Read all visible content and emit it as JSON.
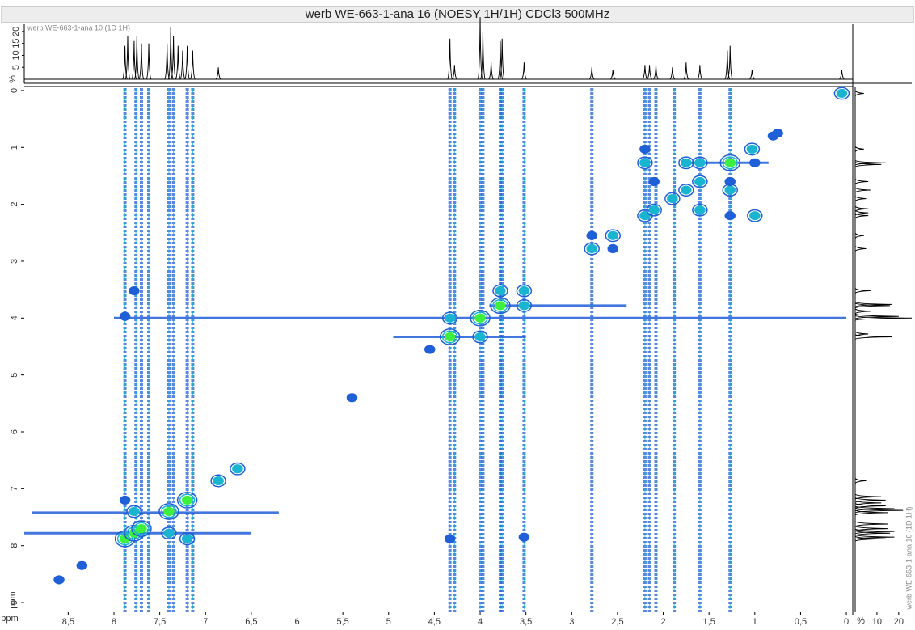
{
  "chart_data": {
    "type": "nmr2d",
    "title": "werb WE-663-1-ana 16 (NOESY 1H/1H) CDCl3 500MHz",
    "trace_label": "werb WE-663-1-ana 10 (1D 1H)",
    "side_label": "werb WE-663-1-ana 10 (1D 1H)",
    "x_unit": "ppm",
    "y_unit": "ppm",
    "trace_unit": "%",
    "side_unit": "%",
    "xlim": [
      8.98,
      -0.07
    ],
    "ylim": [
      -0.07,
      9.17
    ],
    "xticks": [
      {
        "value": 8.5,
        "label": "8,5"
      },
      8,
      {
        "value": 7.5,
        "label": "7,5"
      },
      7,
      {
        "value": 6.5,
        "label": "6,5"
      },
      6,
      {
        "value": 5.5,
        "label": "5,5"
      },
      5,
      {
        "value": 4.5,
        "label": "4,5"
      },
      4,
      {
        "value": 3.5,
        "label": "3,5"
      },
      3,
      {
        "value": 2.5,
        "label": "2,5"
      },
      2,
      {
        "value": 1.5,
        "label": "1,5"
      },
      1,
      {
        "value": 0.5,
        "label": "0,5"
      },
      0
    ],
    "yticks": [
      0,
      1,
      2,
      3,
      4,
      5,
      6,
      7,
      8,
      9
    ],
    "trace_lim": [
      0,
      22
    ],
    "trace_ticks": [
      5,
      10,
      15,
      20
    ],
    "side_lim": [
      0,
      26
    ],
    "side_ticks": [
      10,
      20
    ],
    "level_colors": [
      "#1f5fd8",
      "#19b5d0",
      "#3ef03e"
    ],
    "trace_peaks": [
      {
        "x": 7.88,
        "h": 14
      },
      {
        "x": 7.85,
        "h": 18
      },
      {
        "x": 7.78,
        "h": 16
      },
      {
        "x": 7.75,
        "h": 18
      },
      {
        "x": 7.7,
        "h": 15
      },
      {
        "x": 7.62,
        "h": 15
      },
      {
        "x": 7.42,
        "h": 15
      },
      {
        "x": 7.38,
        "h": 22
      },
      {
        "x": 7.35,
        "h": 18
      },
      {
        "x": 7.3,
        "h": 14
      },
      {
        "x": 7.25,
        "h": 12
      },
      {
        "x": 7.2,
        "h": 14
      },
      {
        "x": 7.14,
        "h": 12
      },
      {
        "x": 6.86,
        "h": 5
      },
      {
        "x": 4.33,
        "h": 17
      },
      {
        "x": 4.28,
        "h": 6
      },
      {
        "x": 4.0,
        "h": 26
      },
      {
        "x": 3.97,
        "h": 20
      },
      {
        "x": 3.88,
        "h": 7
      },
      {
        "x": 3.78,
        "h": 16
      },
      {
        "x": 3.76,
        "h": 17
      },
      {
        "x": 3.52,
        "h": 7
      },
      {
        "x": 2.78,
        "h": 5
      },
      {
        "x": 2.55,
        "h": 4
      },
      {
        "x": 2.2,
        "h": 6
      },
      {
        "x": 2.15,
        "h": 6
      },
      {
        "x": 2.08,
        "h": 6
      },
      {
        "x": 1.9,
        "h": 5
      },
      {
        "x": 1.75,
        "h": 7
      },
      {
        "x": 1.6,
        "h": 6
      },
      {
        "x": 1.3,
        "h": 12
      },
      {
        "x": 1.27,
        "h": 14
      },
      {
        "x": 1.03,
        "h": 4
      },
      {
        "x": 0.05,
        "h": 4
      }
    ],
    "vertical_streaks": [
      7.88,
      7.76,
      7.7,
      7.62,
      7.4,
      7.35,
      7.2,
      7.14,
      4.33,
      4.28,
      4.0,
      3.97,
      3.78,
      3.76,
      3.52,
      2.78,
      2.2,
      2.15,
      2.08,
      1.88,
      1.6,
      1.27
    ],
    "horizontal_streaks": [
      {
        "y": 4.0,
        "from": 8.0,
        "to": 0.0
      },
      {
        "y": 7.42,
        "from": 8.9,
        "to": 6.2
      },
      {
        "y": 7.78,
        "from": 8.98,
        "to": 6.5
      },
      {
        "y": 4.33,
        "from": 4.95,
        "to": 3.5
      },
      {
        "y": 1.27,
        "from": 1.7,
        "to": 0.85
      },
      {
        "y": 3.78,
        "from": 3.9,
        "to": 2.4
      }
    ],
    "peaks": [
      {
        "x": 7.88,
        "y": 7.88,
        "level": 3
      },
      {
        "x": 7.78,
        "y": 7.78,
        "level": 3
      },
      {
        "x": 7.7,
        "y": 7.7,
        "level": 3
      },
      {
        "x": 7.4,
        "y": 7.4,
        "level": 3
      },
      {
        "x": 7.2,
        "y": 7.2,
        "level": 3
      },
      {
        "x": 6.86,
        "y": 6.86,
        "level": 2
      },
      {
        "x": 6.65,
        "y": 6.65,
        "level": 2
      },
      {
        "x": 8.6,
        "y": 8.6,
        "level": 1
      },
      {
        "x": 8.35,
        "y": 8.35,
        "level": 1
      },
      {
        "x": 5.4,
        "y": 5.4,
        "level": 1
      },
      {
        "x": 4.55,
        "y": 4.55,
        "level": 1
      },
      {
        "x": 4.33,
        "y": 4.33,
        "level": 3
      },
      {
        "x": 4.0,
        "y": 4.0,
        "level": 3
      },
      {
        "x": 3.78,
        "y": 3.78,
        "level": 3
      },
      {
        "x": 3.52,
        "y": 3.52,
        "level": 2
      },
      {
        "x": 2.78,
        "y": 2.78,
        "level": 2
      },
      {
        "x": 2.55,
        "y": 2.55,
        "level": 2
      },
      {
        "x": 2.2,
        "y": 2.2,
        "level": 2
      },
      {
        "x": 2.1,
        "y": 2.1,
        "level": 2
      },
      {
        "x": 1.9,
        "y": 1.9,
        "level": 2
      },
      {
        "x": 1.75,
        "y": 1.75,
        "level": 2
      },
      {
        "x": 1.6,
        "y": 1.6,
        "level": 2
      },
      {
        "x": 1.27,
        "y": 1.27,
        "level": 3
      },
      {
        "x": 1.03,
        "y": 1.03,
        "level": 2
      },
      {
        "x": 0.8,
        "y": 0.8,
        "level": 1
      },
      {
        "x": 0.05,
        "y": 0.05,
        "level": 2
      },
      {
        "x": 7.88,
        "y": 7.2,
        "level": 1
      },
      {
        "x": 7.78,
        "y": 7.4,
        "level": 2
      },
      {
        "x": 7.4,
        "y": 7.78,
        "level": 2
      },
      {
        "x": 7.2,
        "y": 7.88,
        "level": 2
      },
      {
        "x": 7.78,
        "y": 3.52,
        "level": 1
      },
      {
        "x": 7.88,
        "y": 3.97,
        "level": 1
      },
      {
        "x": 3.52,
        "y": 7.85,
        "level": 1
      },
      {
        "x": 4.33,
        "y": 7.88,
        "level": 1
      },
      {
        "x": 4.0,
        "y": 4.33,
        "level": 2
      },
      {
        "x": 4.33,
        "y": 4.0,
        "level": 2
      },
      {
        "x": 3.78,
        "y": 3.52,
        "level": 2
      },
      {
        "x": 3.52,
        "y": 3.78,
        "level": 2
      },
      {
        "x": 2.2,
        "y": 1.03,
        "level": 1
      },
      {
        "x": 2.2,
        "y": 1.27,
        "level": 2
      },
      {
        "x": 1.27,
        "y": 2.2,
        "level": 1
      },
      {
        "x": 1.27,
        "y": 1.75,
        "level": 2
      },
      {
        "x": 1.75,
        "y": 1.27,
        "level": 2
      },
      {
        "x": 1.6,
        "y": 1.27,
        "level": 2
      },
      {
        "x": 1.0,
        "y": 2.2,
        "level": 2
      },
      {
        "x": 1.0,
        "y": 1.27,
        "level": 1
      },
      {
        "x": 2.78,
        "y": 2.55,
        "level": 1
      },
      {
        "x": 2.55,
        "y": 2.78,
        "level": 1
      },
      {
        "x": 1.6,
        "y": 2.1,
        "level": 2
      },
      {
        "x": 1.27,
        "y": 1.6,
        "level": 1
      },
      {
        "x": 2.1,
        "y": 1.6,
        "level": 1
      },
      {
        "x": 0.75,
        "y": 0.75,
        "level": 1
      }
    ]
  }
}
